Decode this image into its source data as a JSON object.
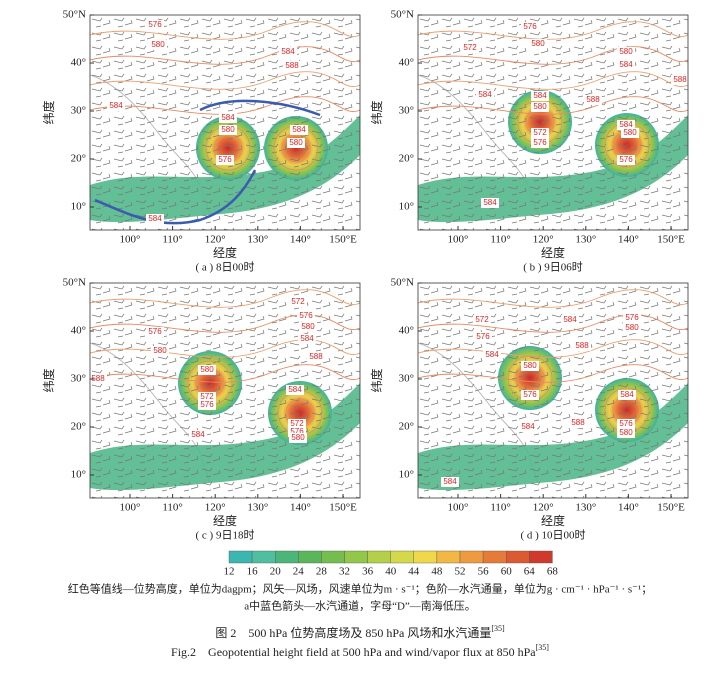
{
  "axes": {
    "xlabel": "经度",
    "ylabel": "纬度",
    "xticks": [
      "100°",
      "110°",
      "120°",
      "130°",
      "140°",
      "150°E"
    ],
    "yticks": [
      "10°",
      "20°",
      "30°",
      "40°",
      "50°N"
    ]
  },
  "panels": [
    {
      "caption": "( a ) 8日00时",
      "contour_labels": [
        "576",
        "580",
        "584",
        "588",
        "584",
        "584",
        "580",
        "576",
        "584",
        "580",
        "584"
      ]
    },
    {
      "caption": "( b ) 9日06时",
      "contour_labels": [
        "576",
        "580",
        "572",
        "580",
        "584",
        "588",
        "584",
        "584",
        "580",
        "572",
        "576",
        "588",
        "584",
        "580",
        "576",
        "584"
      ]
    },
    {
      "caption": "( c ) 9日18时",
      "contour_labels": [
        "572",
        "576",
        "580",
        "584",
        "588",
        "576",
        "580",
        "588",
        "580",
        "572",
        "576",
        "584",
        "584",
        "572",
        "576",
        "580"
      ]
    },
    {
      "caption": "( d ) 10日00时",
      "contour_labels": [
        "572",
        "584",
        "576",
        "580",
        "576",
        "584",
        "588",
        "580",
        "576",
        "584",
        "588",
        "584",
        "576",
        "580",
        "584"
      ]
    }
  ],
  "colorbar": {
    "ticks": [
      12,
      16,
      20,
      24,
      28,
      32,
      36,
      40,
      44,
      48,
      52,
      56,
      60,
      64,
      68
    ],
    "colors": [
      "#3bb6b0",
      "#4fbfa0",
      "#4bb57a",
      "#5bb55a",
      "#75bd4f",
      "#93c74a",
      "#b3d048",
      "#d4d94a",
      "#efd84a",
      "#f2b844",
      "#ee9a3f",
      "#e67a38",
      "#dc5a32",
      "#cf3a2c"
    ]
  },
  "notes": [
    "红色等值线—位势高度，单位为dagpm；风矢—风场，风速单位为m · s⁻¹；色阶—水汽通量，单位为g · cm⁻¹ · hPa⁻¹ · s⁻¹；",
    "a中蓝色箭头—水汽通道，字母“D”—南海低压。"
  ],
  "caption_cn": {
    "text": "图 2　500 hPa 位势高度场及 850 hPa 风场和水汽通量",
    "ref": "[35]"
  },
  "caption_en": {
    "text": "Fig.2　Geopotential height field at 500 hPa and wind/vapor flux at 850 hPa",
    "ref": "[35]"
  }
}
